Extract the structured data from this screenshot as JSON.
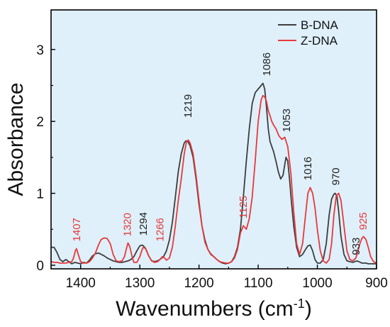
{
  "chart_data": {
    "type": "line",
    "xlabel": "Wavenumbers",
    "xlabel_unit_base": "cm",
    "xlabel_unit_exp": "-1",
    "ylabel": "Absorbance",
    "xlim": [
      1450,
      900
    ],
    "ylim": [
      -0.05,
      3.55
    ],
    "x_reversed": true,
    "x_ticks": [
      "1400",
      "1300",
      "1200",
      "1100",
      "1000",
      "900"
    ],
    "y_ticks": [
      "0",
      "1",
      "2",
      "3"
    ],
    "background_color": "#dff0fa",
    "legend_position": "top-right",
    "series": [
      {
        "name": "B-DNA",
        "color": "#3d3d3d",
        "x": [
          1450,
          1445,
          1440,
          1435,
          1430,
          1425,
          1420,
          1415,
          1410,
          1405,
          1400,
          1395,
          1390,
          1385,
          1380,
          1375,
          1370,
          1365,
          1360,
          1355,
          1350,
          1345,
          1340,
          1335,
          1330,
          1325,
          1320,
          1315,
          1310,
          1305,
          1300,
          1296,
          1294,
          1290,
          1285,
          1280,
          1275,
          1270,
          1266,
          1260,
          1255,
          1250,
          1245,
          1240,
          1235,
          1230,
          1225,
          1222,
          1219,
          1215,
          1210,
          1205,
          1200,
          1195,
          1190,
          1185,
          1180,
          1175,
          1170,
          1165,
          1160,
          1155,
          1150,
          1145,
          1140,
          1135,
          1130,
          1125,
          1120,
          1115,
          1110,
          1105,
          1100,
          1095,
          1092,
          1089,
          1086,
          1083,
          1080,
          1077,
          1074,
          1070,
          1066,
          1062,
          1058,
          1055,
          1053,
          1050,
          1047,
          1044,
          1040,
          1035,
          1030,
          1025,
          1020,
          1016,
          1012,
          1008,
          1004,
          1000,
          995,
          990,
          985,
          980,
          976,
          972,
          970,
          967,
          964,
          960,
          955,
          950,
          945,
          940,
          937,
          933,
          930,
          927,
          925,
          922,
          918,
          914,
          910,
          905,
          900
        ],
        "y": [
          0.25,
          0.25,
          0.18,
          0.08,
          0.05,
          0.08,
          0.05,
          0.02,
          0.04,
          0.03,
          0.02,
          0.04,
          0.03,
          0.07,
          0.13,
          0.16,
          0.17,
          0.15,
          0.13,
          0.1,
          0.08,
          0.06,
          0.05,
          0.04,
          0.04,
          0.05,
          0.06,
          0.08,
          0.12,
          0.2,
          0.27,
          0.28,
          0.27,
          0.23,
          0.13,
          0.06,
          0.05,
          0.06,
          0.08,
          0.12,
          0.2,
          0.35,
          0.6,
          0.95,
          1.3,
          1.55,
          1.7,
          1.73,
          1.72,
          1.66,
          1.5,
          1.2,
          0.85,
          0.55,
          0.35,
          0.22,
          0.15,
          0.12,
          0.08,
          0.05,
          0.03,
          0.02,
          0.03,
          0.05,
          0.12,
          0.25,
          0.5,
          0.95,
          1.45,
          1.9,
          2.25,
          2.4,
          2.45,
          2.5,
          2.53,
          2.45,
          2.2,
          1.9,
          1.72,
          1.65,
          1.58,
          1.45,
          1.3,
          1.2,
          1.25,
          1.4,
          1.5,
          1.45,
          1.2,
          0.9,
          0.55,
          0.25,
          0.12,
          0.15,
          0.22,
          0.27,
          0.28,
          0.2,
          0.08,
          0.03,
          0.03,
          0.08,
          0.3,
          0.7,
          0.92,
          0.99,
          1.0,
          0.96,
          0.75,
          0.4,
          0.15,
          0.06,
          0.05,
          0.04,
          0.05,
          0.06,
          0.05,
          0.04,
          0.03,
          0.03,
          0.03,
          0.02,
          0.02,
          0.02,
          0.02
        ]
      },
      {
        "name": "Z-DNA",
        "color": "#e8383b",
        "x": [
          1450,
          1445,
          1440,
          1435,
          1430,
          1425,
          1420,
          1415,
          1412,
          1409,
          1407,
          1404,
          1400,
          1395,
          1390,
          1385,
          1380,
          1375,
          1370,
          1365,
          1360,
          1355,
          1350,
          1345,
          1340,
          1335,
          1330,
          1326,
          1322,
          1320,
          1317,
          1313,
          1310,
          1305,
          1300,
          1296,
          1294,
          1290,
          1285,
          1280,
          1275,
          1270,
          1266,
          1262,
          1258,
          1255,
          1250,
          1245,
          1240,
          1235,
          1230,
          1225,
          1221,
          1218,
          1215,
          1210,
          1205,
          1200,
          1195,
          1190,
          1185,
          1180,
          1175,
          1170,
          1165,
          1160,
          1155,
          1150,
          1145,
          1140,
          1135,
          1130,
          1125,
          1120,
          1115,
          1110,
          1105,
          1100,
          1095,
          1092,
          1089,
          1086,
          1083,
          1080,
          1077,
          1074,
          1070,
          1065,
          1060,
          1055,
          1050,
          1045,
          1040,
          1035,
          1030,
          1025,
          1020,
          1016,
          1012,
          1008,
          1004,
          1000,
          995,
          990,
          985,
          980,
          976,
          972,
          968,
          964,
          960,
          955,
          950,
          945,
          940,
          935,
          932,
          928,
          925,
          922,
          918,
          914,
          910,
          905,
          900
        ],
        "y": [
          0.05,
          0.04,
          0.04,
          0.03,
          0.03,
          0.03,
          0.04,
          0.05,
          0.1,
          0.2,
          0.23,
          0.15,
          0.05,
          0.03,
          0.03,
          0.05,
          0.1,
          0.17,
          0.28,
          0.36,
          0.38,
          0.37,
          0.3,
          0.15,
          0.06,
          0.05,
          0.06,
          0.12,
          0.25,
          0.31,
          0.26,
          0.12,
          0.04,
          0.04,
          0.12,
          0.22,
          0.25,
          0.23,
          0.13,
          0.06,
          0.04,
          0.05,
          0.08,
          0.12,
          0.1,
          0.07,
          0.1,
          0.25,
          0.55,
          0.9,
          1.2,
          1.55,
          1.72,
          1.74,
          1.7,
          1.55,
          1.25,
          0.9,
          0.55,
          0.32,
          0.22,
          0.16,
          0.12,
          0.08,
          0.05,
          0.04,
          0.03,
          0.03,
          0.05,
          0.1,
          0.22,
          0.45,
          0.55,
          0.5,
          0.65,
          0.95,
          1.45,
          2.0,
          2.3,
          2.36,
          2.34,
          2.28,
          2.15,
          2.08,
          2.0,
          1.95,
          1.9,
          1.8,
          1.75,
          1.78,
          1.65,
          1.3,
          0.75,
          0.3,
          0.15,
          0.3,
          0.7,
          1.0,
          1.08,
          1.0,
          0.8,
          0.5,
          0.2,
          0.06,
          0.03,
          0.08,
          0.3,
          0.7,
          0.97,
          1.0,
          0.9,
          0.55,
          0.2,
          0.08,
          0.06,
          0.1,
          0.18,
          0.3,
          0.37,
          0.4,
          0.36,
          0.25,
          0.12,
          0.05,
          0.03
        ]
      }
    ],
    "annotations": [
      {
        "text": "1407",
        "x": 1407,
        "y": 0.33,
        "color": "#e8383b"
      },
      {
        "text": "1320",
        "x": 1321,
        "y": 0.4,
        "color": "#e8383b"
      },
      {
        "text": "1294",
        "x": 1294,
        "y": 0.41,
        "color": "#222222"
      },
      {
        "text": "1266",
        "x": 1266,
        "y": 0.33,
        "color": "#e8383b"
      },
      {
        "text": "1219",
        "x": 1219,
        "y": 2.05,
        "color": "#222222"
      },
      {
        "text": "1125",
        "x": 1125,
        "y": 0.65,
        "color": "#e8383b"
      },
      {
        "text": "1086",
        "x": 1086,
        "y": 2.63,
        "color": "#222222"
      },
      {
        "text": "1053",
        "x": 1052,
        "y": 1.85,
        "color": "#222222"
      },
      {
        "text": "1016",
        "x": 1016,
        "y": 1.18,
        "color": "#222222"
      },
      {
        "text": "970",
        "x": 969,
        "y": 1.11,
        "color": "#222222"
      },
      {
        "text": "933",
        "x": 935,
        "y": 0.14,
        "color": "#222222"
      },
      {
        "text": "925",
        "x": 923,
        "y": 0.49,
        "color": "#e8383b"
      }
    ]
  }
}
